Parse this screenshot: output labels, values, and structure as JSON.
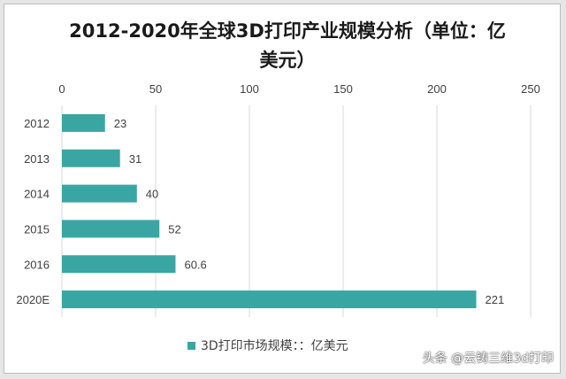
{
  "colors": {
    "bar": "#3aa6a3",
    "grid": "#d9d9d9",
    "text": "#404040",
    "background": "#ffffff"
  },
  "chart_data": {
    "type": "bar",
    "orientation": "horizontal",
    "title": "2012-2020年全球3D打印产业规模分析（单位：亿美元）",
    "title_line1": "2012-2020年全球3D打印产业规模分析（单位：亿",
    "title_line2": "美元）",
    "categories": [
      "2012",
      "2013",
      "2014",
      "2015",
      "2016",
      "2020E"
    ],
    "series": [
      {
        "name": "3D打印市场规模：：亿美元",
        "values": [
          23,
          31,
          40,
          52,
          60.6,
          221
        ]
      }
    ],
    "value_labels": [
      "23",
      "31",
      "40",
      "52",
      "60.6",
      "221"
    ],
    "xlim": [
      0,
      250
    ],
    "xticks": [
      0,
      50,
      100,
      150,
      200,
      250
    ],
    "x_axis_position": "top",
    "grid": true,
    "legend_position": "bottom"
  },
  "legend": {
    "label": "3D打印市场规模：：亿美元"
  },
  "watermark": {
    "text": "头条 @云铸三维3d打印"
  }
}
